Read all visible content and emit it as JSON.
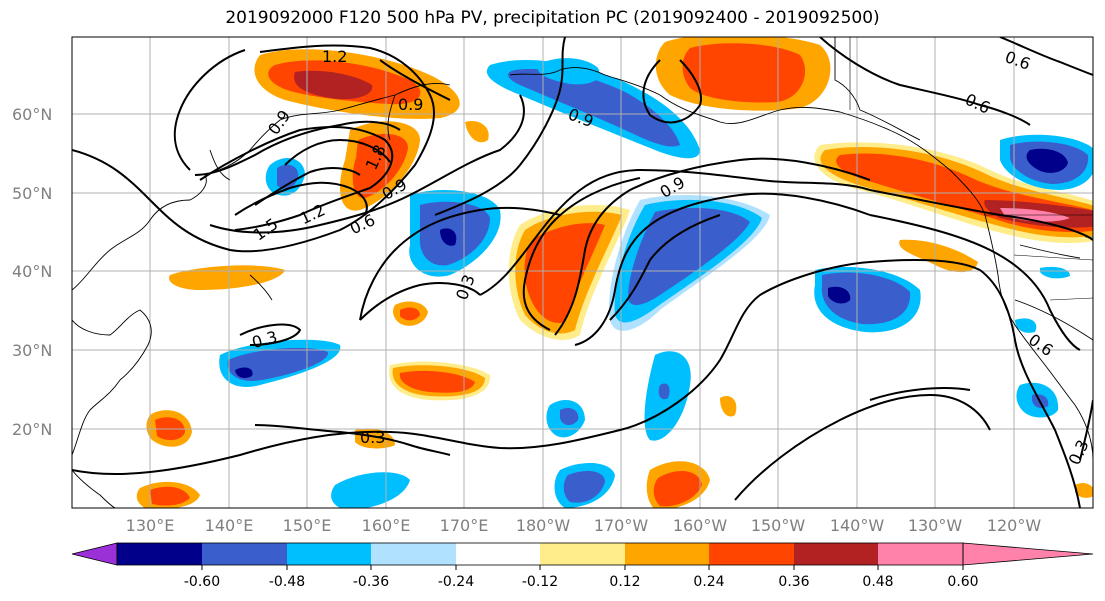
{
  "title": "2019092000 F120 500 hPa PV, precipitation PC (2019092400 - 2019092500)",
  "lat_labels": [
    "60°N",
    "50°N",
    "40°N",
    "30°N",
    "20°N"
  ],
  "lon_labels": [
    "130°E",
    "140°E",
    "150°E",
    "160°E",
    "170°E",
    "180°W",
    "170°W",
    "160°W",
    "150°W",
    "140°W",
    "130°W",
    "120°W"
  ],
  "contour_labels": [
    "1.2",
    "0.9",
    "0.9",
    "1.8",
    "1.5",
    "1.2",
    "0.6",
    "0.9",
    "0.3",
    "0.3",
    "0.3",
    "0.9",
    "0.9",
    "0.6",
    "0.6",
    "0.6",
    "0.3"
  ],
  "colorbar": {
    "ticks": [
      "-0.60",
      "-0.48",
      "-0.36",
      "-0.24",
      "-0.12",
      "0.12",
      "0.24",
      "0.36",
      "0.48",
      "0.60"
    ],
    "colors": [
      "#9b30d9",
      "#00008b",
      "#3a5fcd",
      "#00bfff",
      "#b0e2ff",
      "#ffffff",
      "#ffec8b",
      "#ffa500",
      "#ff4500",
      "#b22222",
      "#ff82ab"
    ]
  }
}
